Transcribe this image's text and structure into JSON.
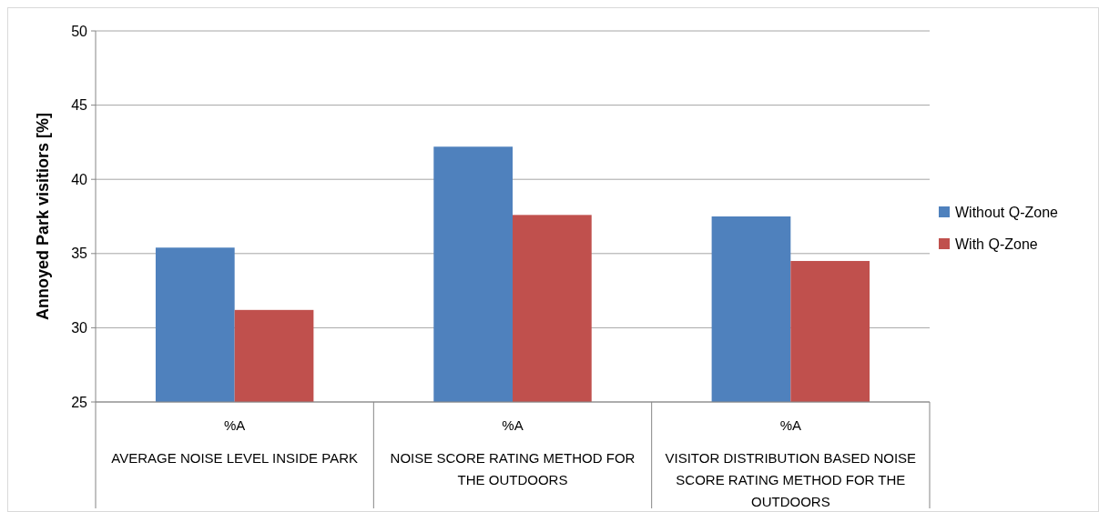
{
  "chart_data": {
    "type": "bar",
    "ylabel": "Annoyed Park visitiors [%]",
    "categories": [
      "%A\nAVERAGE NOISE LEVEL INSIDE PARK",
      "%A\nNOISE SCORE RATING METHOD FOR THE OUTDOORS",
      "%A\nVISITOR DISTRIBUTION BASED NOISE SCORE RATING METHOD FOR THE OUTDOORS"
    ],
    "series": [
      {
        "name": "Without Q-Zone",
        "color": "#4f81bd",
        "values": [
          35.4,
          42.2,
          37.5
        ]
      },
      {
        "name": "With Q-Zone",
        "color": "#c0504d",
        "values": [
          31.2,
          37.6,
          34.5
        ]
      }
    ],
    "ylim": [
      25,
      50
    ],
    "yticks": [
      25,
      30,
      35,
      40,
      45,
      50
    ],
    "grid": "y",
    "legend": "right"
  }
}
